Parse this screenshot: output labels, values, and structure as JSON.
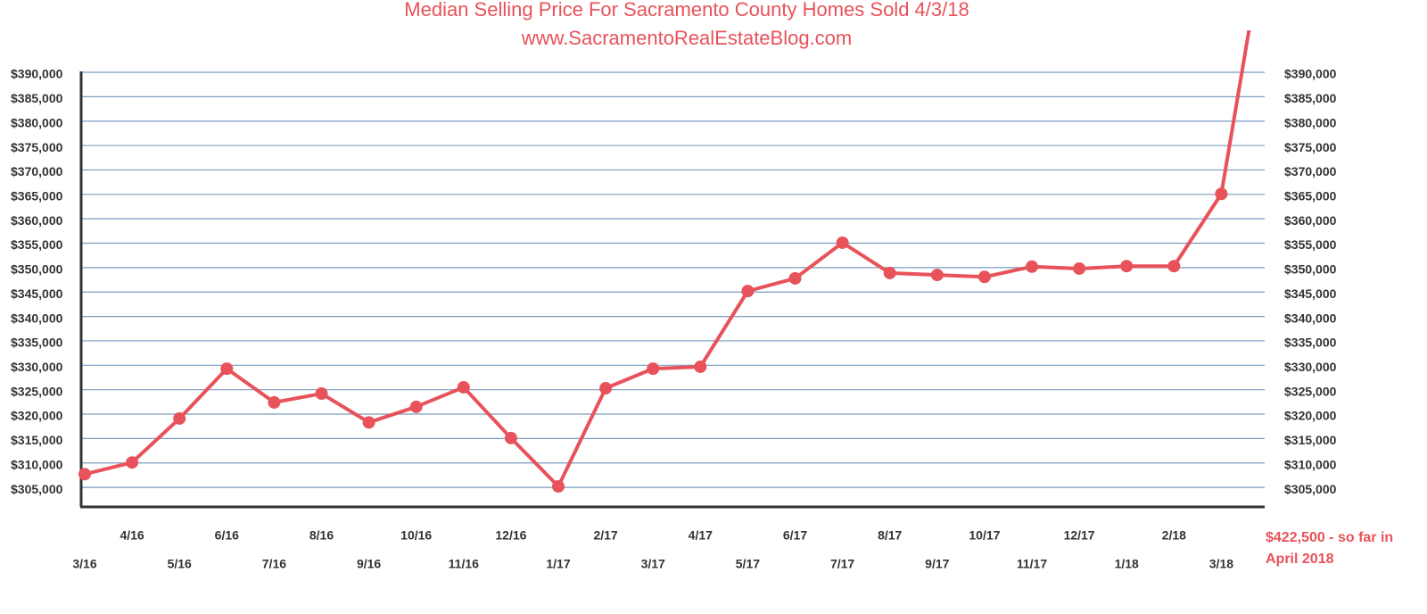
{
  "chart_data": {
    "type": "line",
    "title": "Median Selling Price For Sacramento County Homes Sold 4/3/18",
    "subtitle": "www.SacramentoRealEstateBlog.com",
    "categories": [
      "3/16",
      "4/16",
      "5/16",
      "6/16",
      "7/16",
      "8/16",
      "9/16",
      "10/16",
      "11/16",
      "12/16",
      "1/17",
      "2/17",
      "3/17",
      "4/17",
      "5/17",
      "6/17",
      "7/17",
      "8/17",
      "9/17",
      "10/17",
      "11/17",
      "12/17",
      "1/18",
      "2/18",
      "3/18",
      "$422,500 - so far in April 2018"
    ],
    "series": [
      {
        "name": "Median Selling Price",
        "color": "#e8525a",
        "values": [
          307700,
          310100,
          319100,
          329300,
          322400,
          324200,
          318300,
          321500,
          325500,
          315100,
          305200,
          325300,
          329300,
          329700,
          345200,
          347800,
          355100,
          348900,
          348500,
          348100,
          350200,
          349800,
          350300,
          350300,
          365100,
          422500
        ]
      }
    ],
    "ylim": [
      301000,
      390000
    ],
    "yticks": [
      {
        "value": 305000,
        "label": "$305,000"
      },
      {
        "value": 310000,
        "label": "$310,000"
      },
      {
        "value": 315000,
        "label": "$315,000"
      },
      {
        "value": 320000,
        "label": "$320,000"
      },
      {
        "value": 325000,
        "label": "$325,000"
      },
      {
        "value": 330000,
        "label": "$330,000"
      },
      {
        "value": 335000,
        "label": "$335,000"
      },
      {
        "value": 340000,
        "label": "$340,000"
      },
      {
        "value": 345000,
        "label": "$345,000"
      },
      {
        "value": 350000,
        "label": "$350,000"
      },
      {
        "value": 355000,
        "label": "$355,000"
      },
      {
        "value": 360000,
        "label": "$360,000"
      },
      {
        "value": 365000,
        "label": "$365,000"
      },
      {
        "value": 370000,
        "label": "$370,000"
      },
      {
        "value": 375000,
        "label": "$375,000"
      },
      {
        "value": 380000,
        "label": "$380,000"
      },
      {
        "value": 385000,
        "label": "$385,000"
      },
      {
        "value": 390000,
        "label": "$390,000"
      }
    ],
    "grid": true
  }
}
